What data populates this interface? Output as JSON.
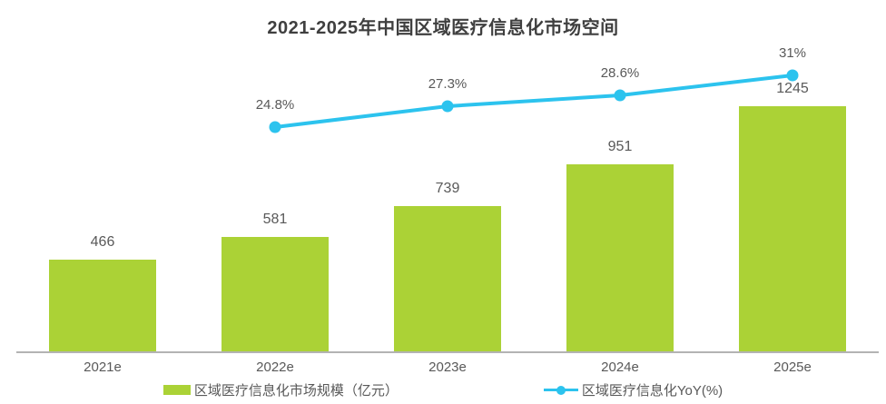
{
  "title": "2021-2025年中国区域医疗信息化市场空间",
  "legend": {
    "bar_label": "区域医疗信息化市场规模（亿元）",
    "line_label": "区域医疗信息化YoY(%)"
  },
  "colors": {
    "bar": "#abd236",
    "line": "#2cc3ee",
    "axis": "#b3b3b3",
    "title_text": "#3f3f3f",
    "label_text": "#595959"
  },
  "chart_data": {
    "type": "bar",
    "subtype": "combo-bar-line",
    "title": "2021-2025年中国区域医疗信息化市场空间",
    "categories": [
      "2021e",
      "2022e",
      "2023e",
      "2024e",
      "2025e"
    ],
    "series": [
      {
        "name": "区域医疗信息化市场规模（亿元）",
        "type": "bar",
        "unit": "亿元",
        "values": [
          466,
          581,
          739,
          951,
          1245
        ],
        "labels": [
          "466",
          "581",
          "739",
          "951",
          "1245"
        ]
      },
      {
        "name": "区域医疗信息化YoY(%)",
        "type": "line",
        "unit": "%",
        "values": [
          null,
          24.8,
          27.3,
          28.6,
          31
        ],
        "labels": [
          null,
          "24.8%",
          "27.3%",
          "28.6%",
          "31%"
        ]
      }
    ],
    "ylim": [
      0,
      1300
    ],
    "y2lim": [
      20,
      33
    ],
    "grid": false,
    "data_labels": true,
    "legend_position": "bottom"
  }
}
